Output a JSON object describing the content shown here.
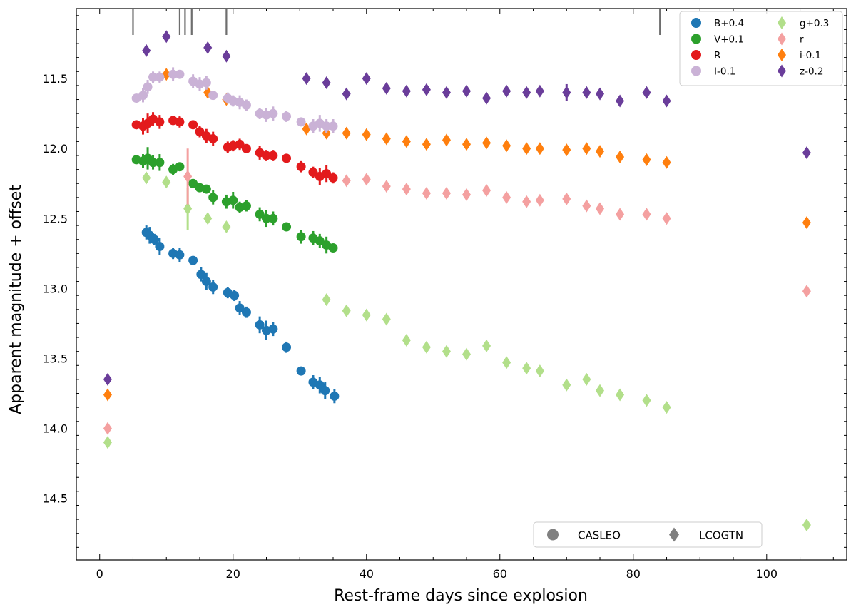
{
  "chart_data": {
    "type": "scatter",
    "xlabel": "Rest-frame days since explosion",
    "ylabel": "Apparent magnitude + offset",
    "xlim": [
      -3.5,
      112
    ],
    "ylim": [
      14.94,
      11.0
    ],
    "y_inverted": true,
    "xticks": [
      0,
      20,
      40,
      60,
      80,
      100
    ],
    "yticks": [
      11.5,
      12.0,
      12.5,
      13.0,
      13.5,
      14.0,
      14.5
    ],
    "ytick_labels": [
      "11.5",
      "12.0",
      "12.5",
      "13.0",
      "13.5",
      "14.0",
      "14.5"
    ],
    "epoch_markers": [
      5,
      12,
      12.8,
      13.8,
      19,
      84
    ],
    "legend_location": "top-right",
    "instrument_legend_location": "bottom-right",
    "instruments": [
      {
        "name": "CASLEO",
        "marker": "circle",
        "color": "#808080"
      },
      {
        "name": "LCOGTN",
        "marker": "diamond",
        "color": "#808080"
      }
    ],
    "series": [
      {
        "name": "B+0.4",
        "color": "#1f77b4",
        "marker": "circle",
        "points": [
          [
            7,
            12.6
          ],
          [
            7.5,
            12.62
          ],
          [
            8.2,
            12.65
          ],
          [
            9,
            12.7
          ],
          [
            11,
            12.75
          ],
          [
            12,
            12.76
          ],
          [
            14,
            12.8
          ],
          [
            15.2,
            12.9
          ],
          [
            16,
            12.95
          ],
          [
            17,
            12.99
          ],
          [
            19.2,
            13.03
          ],
          [
            20.2,
            13.05
          ],
          [
            21,
            13.14
          ],
          [
            22,
            13.17
          ],
          [
            24,
            13.26
          ],
          [
            25,
            13.3
          ],
          [
            26,
            13.29
          ],
          [
            28,
            13.42
          ],
          [
            30.2,
            13.59
          ],
          [
            32,
            13.67
          ],
          [
            33,
            13.69
          ],
          [
            33.8,
            13.73
          ],
          [
            35.2,
            13.77
          ]
        ],
        "errors": [
          0.05,
          0.06,
          0.04,
          0.06,
          0.04,
          0.05,
          0.02,
          0.05,
          0.06,
          0.05,
          0.04,
          0.04,
          0.05,
          0.04,
          0.06,
          0.07,
          0.05,
          0.04,
          0.02,
          0.05,
          0.06,
          0.06,
          0.05
        ]
      },
      {
        "name": "g+0.3",
        "color": "#b2df8a",
        "marker": "diamond",
        "points": [
          [
            1.2,
            14.1
          ],
          [
            7,
            12.21
          ],
          [
            10,
            12.24
          ],
          [
            13.2,
            12.43
          ],
          [
            16.2,
            12.5
          ],
          [
            19,
            12.56
          ],
          [
            34,
            13.08
          ],
          [
            37,
            13.16
          ],
          [
            40,
            13.19
          ],
          [
            43,
            13.22
          ],
          [
            46,
            13.37
          ],
          [
            49,
            13.42
          ],
          [
            52,
            13.45
          ],
          [
            55,
            13.47
          ],
          [
            58,
            13.41
          ],
          [
            61,
            13.53
          ],
          [
            64,
            13.57
          ],
          [
            66,
            13.59
          ],
          [
            70,
            13.69
          ],
          [
            73,
            13.65
          ],
          [
            75,
            13.73
          ],
          [
            78,
            13.76
          ],
          [
            82,
            13.8
          ],
          [
            85,
            13.85
          ],
          [
            106,
            14.69
          ]
        ],
        "errors": [
          0,
          0,
          0,
          0.15,
          0,
          0,
          0,
          0,
          0,
          0,
          0,
          0,
          0,
          0,
          0,
          0,
          0,
          0,
          0,
          0,
          0,
          0,
          0,
          0,
          0
        ]
      },
      {
        "name": "V+0.1",
        "color": "#2ca02c",
        "marker": "circle",
        "points": [
          [
            5.5,
            12.08
          ],
          [
            6.5,
            12.09
          ],
          [
            7.2,
            12.07
          ],
          [
            8,
            12.1
          ],
          [
            9,
            12.1
          ],
          [
            11,
            12.15
          ],
          [
            12,
            12.13
          ],
          [
            14,
            12.25
          ],
          [
            15,
            12.28
          ],
          [
            16,
            12.29
          ],
          [
            17,
            12.35
          ],
          [
            19,
            12.38
          ],
          [
            20,
            12.37
          ],
          [
            21,
            12.42
          ],
          [
            22,
            12.41
          ],
          [
            24,
            12.47
          ],
          [
            25,
            12.5
          ],
          [
            26,
            12.5
          ],
          [
            28,
            12.56
          ],
          [
            30.2,
            12.63
          ],
          [
            32,
            12.64
          ],
          [
            33,
            12.66
          ],
          [
            34,
            12.69
          ],
          [
            35,
            12.71
          ]
        ],
        "errors": [
          0.02,
          0.05,
          0.08,
          0.05,
          0.06,
          0.04,
          0.03,
          0.03,
          0.02,
          0.03,
          0.05,
          0.05,
          0.06,
          0.04,
          0.04,
          0.05,
          0.06,
          0.05,
          0.02,
          0.05,
          0.05,
          0.05,
          0.06,
          0.03
        ]
      },
      {
        "name": "r",
        "color": "#f4a0a0",
        "marker": "diamond",
        "points": [
          [
            1.2,
            14.0
          ],
          [
            13.2,
            12.2
          ],
          [
            37,
            12.23
          ],
          [
            40,
            12.22
          ],
          [
            43,
            12.27
          ],
          [
            46,
            12.29
          ],
          [
            49,
            12.32
          ],
          [
            52,
            12.32
          ],
          [
            55,
            12.33
          ],
          [
            58,
            12.3
          ],
          [
            61,
            12.35
          ],
          [
            64,
            12.38
          ],
          [
            66,
            12.37
          ],
          [
            70,
            12.36
          ],
          [
            73,
            12.41
          ],
          [
            75,
            12.43
          ],
          [
            78,
            12.47
          ],
          [
            82,
            12.47
          ],
          [
            85,
            12.5
          ],
          [
            106,
            13.02
          ]
        ],
        "errors": [
          0,
          0.2,
          0,
          0,
          0,
          0,
          0,
          0,
          0,
          0,
          0,
          0,
          0,
          0,
          0,
          0,
          0,
          0,
          0,
          0
        ]
      },
      {
        "name": "R",
        "color": "#e31a1c",
        "marker": "circle",
        "points": [
          [
            5.5,
            11.83
          ],
          [
            6.5,
            11.84
          ],
          [
            7.2,
            11.82
          ],
          [
            8,
            11.79
          ],
          [
            9,
            11.81
          ],
          [
            11,
            11.8
          ],
          [
            12,
            11.81
          ],
          [
            14,
            11.83
          ],
          [
            15,
            11.88
          ],
          [
            16,
            11.91
          ],
          [
            17,
            11.93
          ],
          [
            19.2,
            11.99
          ],
          [
            20,
            11.98
          ],
          [
            21,
            11.97
          ],
          [
            22,
            12.0
          ],
          [
            24,
            12.03
          ],
          [
            25,
            12.05
          ],
          [
            26,
            12.05
          ],
          [
            28,
            12.07
          ],
          [
            30.2,
            12.13
          ],
          [
            32,
            12.17
          ],
          [
            33,
            12.2
          ],
          [
            34,
            12.18
          ],
          [
            35,
            12.21
          ]
        ],
        "errors": [
          0.02,
          0.06,
          0.07,
          0.05,
          0.05,
          0.02,
          0.04,
          0.03,
          0.04,
          0.05,
          0.05,
          0.04,
          0.04,
          0.04,
          0.03,
          0.05,
          0.04,
          0.04,
          0.02,
          0.04,
          0.04,
          0.06,
          0.06,
          0.04
        ]
      },
      {
        "name": "i-0.1",
        "color": "#ff7f0e",
        "marker": "diamond",
        "points": [
          [
            1.2,
            13.76
          ],
          [
            10,
            11.47
          ],
          [
            16.2,
            11.6
          ],
          [
            19,
            11.65
          ],
          [
            31,
            11.86
          ],
          [
            34,
            11.89
          ],
          [
            37,
            11.89
          ],
          [
            40,
            11.9
          ],
          [
            43,
            11.93
          ],
          [
            46,
            11.95
          ],
          [
            49,
            11.97
          ],
          [
            52,
            11.94
          ],
          [
            55,
            11.97
          ],
          [
            58,
            11.96
          ],
          [
            61,
            11.98
          ],
          [
            64,
            12.0
          ],
          [
            66,
            12.0
          ],
          [
            70,
            12.01
          ],
          [
            73,
            12.0
          ],
          [
            75,
            12.02
          ],
          [
            78,
            12.06
          ],
          [
            82,
            12.08
          ],
          [
            85,
            12.1
          ],
          [
            106,
            12.53
          ]
        ],
        "errors": [
          0,
          0,
          0,
          0,
          0,
          0,
          0,
          0,
          0,
          0,
          0,
          0,
          0,
          0,
          0,
          0,
          0,
          0,
          0,
          0,
          0,
          0,
          0,
          0
        ]
      },
      {
        "name": "I-0.1",
        "color": "#cab2d6",
        "marker": "circle",
        "points": [
          [
            5.5,
            11.64
          ],
          [
            6.5,
            11.62
          ],
          [
            7.2,
            11.56
          ],
          [
            8,
            11.49
          ],
          [
            9,
            11.49
          ],
          [
            11,
            11.47
          ],
          [
            12,
            11.47
          ],
          [
            14,
            11.52
          ],
          [
            15,
            11.54
          ],
          [
            16,
            11.53
          ],
          [
            17,
            11.62
          ],
          [
            19.2,
            11.64
          ],
          [
            20,
            11.66
          ],
          [
            21,
            11.67
          ],
          [
            22,
            11.69
          ],
          [
            24,
            11.75
          ],
          [
            25,
            11.76
          ],
          [
            26,
            11.75
          ],
          [
            28,
            11.77
          ],
          [
            30.2,
            11.81
          ],
          [
            32,
            11.84
          ],
          [
            33,
            11.82
          ],
          [
            34,
            11.84
          ],
          [
            35,
            11.84
          ]
        ],
        "errors": [
          0.02,
          0.05,
          0.05,
          0.04,
          0.04,
          0.05,
          0.03,
          0.05,
          0.05,
          0.05,
          0.02,
          0.04,
          0.04,
          0.05,
          0.04,
          0.04,
          0.05,
          0.05,
          0.04,
          0.02,
          0.05,
          0.06,
          0.05,
          0.05
        ]
      },
      {
        "name": "z-0.2",
        "color": "#6a3d9a",
        "marker": "diamond",
        "points": [
          [
            1.2,
            13.65
          ],
          [
            7,
            11.3
          ],
          [
            10,
            11.2
          ],
          [
            16.2,
            11.28
          ],
          [
            19,
            11.34
          ],
          [
            31,
            11.5
          ],
          [
            34,
            11.53
          ],
          [
            37,
            11.61
          ],
          [
            40,
            11.5
          ],
          [
            43,
            11.57
          ],
          [
            46,
            11.59
          ],
          [
            49,
            11.58
          ],
          [
            52,
            11.6
          ],
          [
            55,
            11.59
          ],
          [
            58,
            11.64
          ],
          [
            61,
            11.59
          ],
          [
            64,
            11.6
          ],
          [
            66,
            11.59
          ],
          [
            70,
            11.6
          ],
          [
            73,
            11.6
          ],
          [
            75,
            11.61
          ],
          [
            78,
            11.66
          ],
          [
            82,
            11.6
          ],
          [
            85,
            11.66
          ],
          [
            106,
            12.03
          ]
        ],
        "errors": [
          0,
          0,
          0,
          0,
          0,
          0,
          0,
          0,
          0,
          0,
          0,
          0,
          0,
          0,
          0,
          0,
          0,
          0,
          0.06,
          0,
          0,
          0,
          0,
          0,
          0
        ]
      }
    ]
  }
}
